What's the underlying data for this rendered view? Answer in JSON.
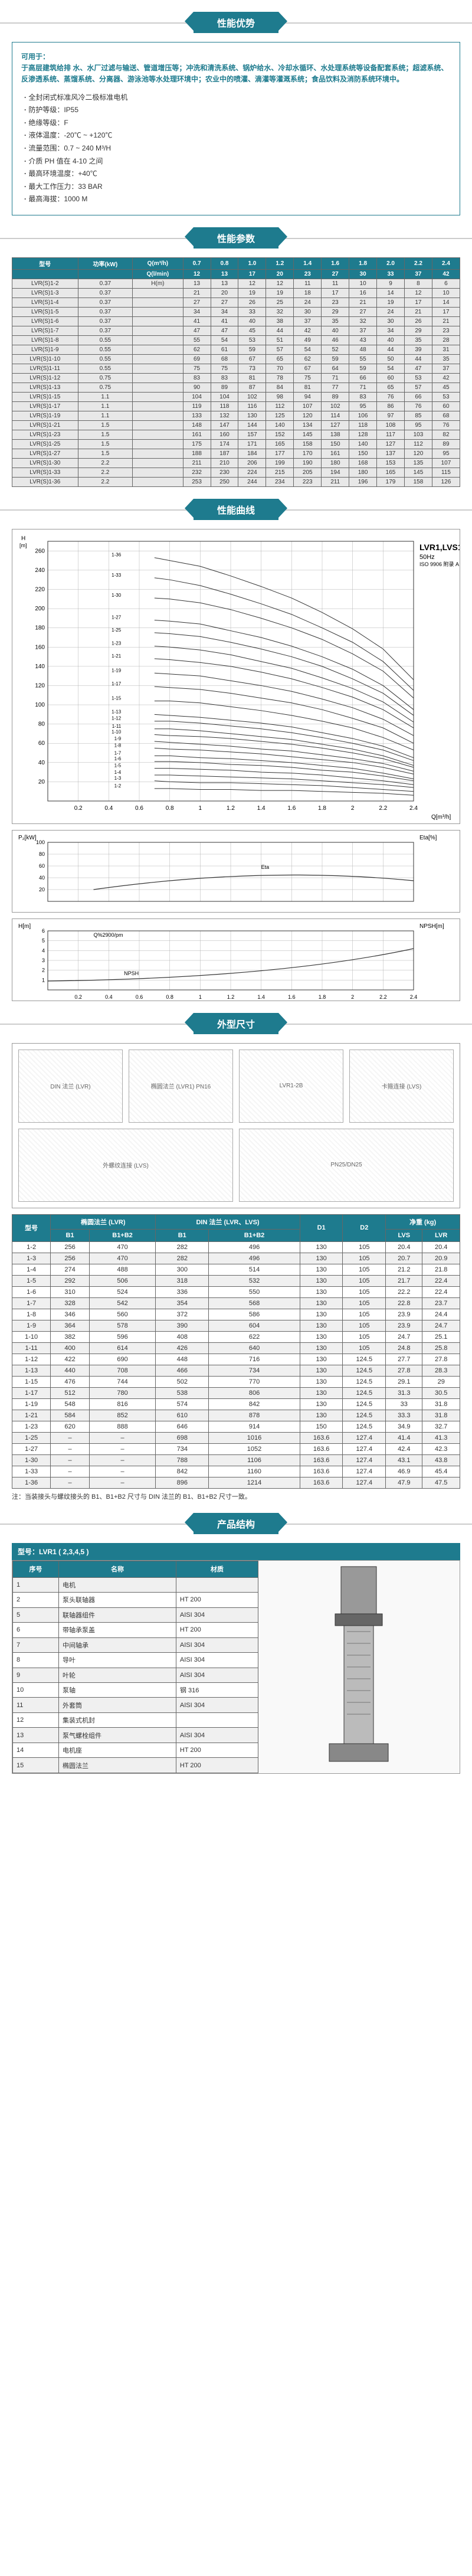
{
  "titles": {
    "adv": "性能优势",
    "param": "性能参数",
    "curve": "性能曲线",
    "dim": "外型尺寸",
    "struct": "产品结构"
  },
  "advantages": {
    "apps_label": "可用于：",
    "apps_text": "于高层建筑给排\n水、水厂过滤与输送、管道增压等；冲洗和清洗系统、锅炉给水、冷却水循环、水处理系统等设备配套系统；超滤系统、反渗透系统、蒸馏系统、分离器、游泳池等水处理环境中；农业中的喷灌、滴灌等灌溉系统；食品饮料及消防系统环境中。",
    "specs": [
      "全封闭式标准风冷二极标准电机",
      "防护等级：IP55",
      "绝缘等级：F",
      "液体温度：-20℃ ~ +120℃",
      "流量范围：0.7 ~ 240 M³/H",
      "介质 PH 值在 4-10 之间",
      "最高环境温度：+40℃",
      "最大工作压力：33 BAR",
      "最高海拔：1000 M"
    ]
  },
  "param_table": {
    "head1": [
      "型号",
      "功率(kW)",
      "Q(m³/h)",
      "0.7",
      "0.8",
      "1.0",
      "1.2",
      "1.4",
      "1.6",
      "1.8",
      "2.0",
      "2.2",
      "2.4"
    ],
    "head2": [
      "",
      "",
      "Q(l/min)",
      "12",
      "13",
      "17",
      "20",
      "23",
      "27",
      "30",
      "33",
      "37",
      "42"
    ],
    "rows": [
      [
        "LVR(S)1-2",
        "0.37",
        "H(m)",
        "13",
        "13",
        "12",
        "12",
        "11",
        "11",
        "10",
        "9",
        "8",
        "6"
      ],
      [
        "LVR(S)1-3",
        "0.37",
        "",
        "21",
        "20",
        "19",
        "19",
        "18",
        "17",
        "16",
        "14",
        "12",
        "10"
      ],
      [
        "LVR(S)1-4",
        "0.37",
        "",
        "27",
        "27",
        "26",
        "25",
        "24",
        "23",
        "21",
        "19",
        "17",
        "14"
      ],
      [
        "LVR(S)1-5",
        "0.37",
        "",
        "34",
        "34",
        "33",
        "32",
        "30",
        "29",
        "27",
        "24",
        "21",
        "17"
      ],
      [
        "LVR(S)1-6",
        "0.37",
        "",
        "41",
        "41",
        "40",
        "38",
        "37",
        "35",
        "32",
        "30",
        "26",
        "21"
      ],
      [
        "LVR(S)1-7",
        "0.37",
        "",
        "47",
        "47",
        "45",
        "44",
        "42",
        "40",
        "37",
        "34",
        "29",
        "23"
      ],
      [
        "LVR(S)1-8",
        "0.55",
        "",
        "55",
        "54",
        "53",
        "51",
        "49",
        "46",
        "43",
        "40",
        "35",
        "28"
      ],
      [
        "LVR(S)1-9",
        "0.55",
        "",
        "62",
        "61",
        "59",
        "57",
        "54",
        "52",
        "48",
        "44",
        "39",
        "31"
      ],
      [
        "LVR(S)1-10",
        "0.55",
        "",
        "69",
        "68",
        "67",
        "65",
        "62",
        "59",
        "55",
        "50",
        "44",
        "35"
      ],
      [
        "LVR(S)1-11",
        "0.55",
        "",
        "75",
        "75",
        "73",
        "70",
        "67",
        "64",
        "59",
        "54",
        "47",
        "37"
      ],
      [
        "LVR(S)1-12",
        "0.75",
        "",
        "83",
        "83",
        "81",
        "78",
        "75",
        "71",
        "66",
        "60",
        "53",
        "42"
      ],
      [
        "LVR(S)1-13",
        "0.75",
        "",
        "90",
        "89",
        "87",
        "84",
        "81",
        "77",
        "71",
        "65",
        "57",
        "45"
      ],
      [
        "LVR(S)1-15",
        "1.1",
        "",
        "104",
        "104",
        "102",
        "98",
        "94",
        "89",
        "83",
        "76",
        "66",
        "53"
      ],
      [
        "LVR(S)1-17",
        "1.1",
        "",
        "119",
        "118",
        "116",
        "112",
        "107",
        "102",
        "95",
        "86",
        "76",
        "60"
      ],
      [
        "LVR(S)1-19",
        "1.1",
        "",
        "133",
        "132",
        "130",
        "125",
        "120",
        "114",
        "106",
        "97",
        "85",
        "68"
      ],
      [
        "LVR(S)1-21",
        "1.5",
        "",
        "148",
        "147",
        "144",
        "140",
        "134",
        "127",
        "118",
        "108",
        "95",
        "76"
      ],
      [
        "LVR(S)1-23",
        "1.5",
        "",
        "161",
        "160",
        "157",
        "152",
        "145",
        "138",
        "128",
        "117",
        "103",
        "82"
      ],
      [
        "LVR(S)1-25",
        "1.5",
        "",
        "175",
        "174",
        "171",
        "165",
        "158",
        "150",
        "140",
        "127",
        "112",
        "89"
      ],
      [
        "LVR(S)1-27",
        "1.5",
        "",
        "188",
        "187",
        "184",
        "177",
        "170",
        "161",
        "150",
        "137",
        "120",
        "95"
      ],
      [
        "LVR(S)1-30",
        "2.2",
        "",
        "211",
        "210",
        "206",
        "199",
        "190",
        "180",
        "168",
        "153",
        "135",
        "107"
      ],
      [
        "LVR(S)1-33",
        "2.2",
        "",
        "232",
        "230",
        "224",
        "215",
        "205",
        "194",
        "180",
        "165",
        "145",
        "115"
      ],
      [
        "LVR(S)1-36",
        "2.2",
        "",
        "253",
        "250",
        "244",
        "234",
        "223",
        "211",
        "196",
        "179",
        "158",
        "126"
      ]
    ]
  },
  "curves": {
    "main": {
      "title": "LVR1,LVS1",
      "subtitle": "50Hz",
      "iso": "ISO 9906 附录 A",
      "x_label": "Q[m³/h]",
      "y_label_l": "H[m]",
      "y_label_r": "P[kPa]",
      "xlim": [
        0,
        2.4
      ],
      "ylim_m": [
        0,
        270
      ],
      "ylim_kpa": [
        0,
        2600
      ],
      "xticks": [
        0,
        0.2,
        0.4,
        0.6,
        0.8,
        1.0,
        1.2,
        1.4,
        1.6,
        1.8,
        2.0,
        2.2,
        2.4
      ],
      "yticks": [
        0,
        20,
        40,
        60,
        80,
        100,
        120,
        140,
        160,
        180,
        200,
        220,
        240,
        260
      ],
      "grid_color": "#b0b0b0",
      "line_color": "#333",
      "bg": "#fff",
      "curve_labels": [
        "1-36",
        "1-33",
        "1-30",
        "1-27",
        "1-25",
        "1-23",
        "1-21",
        "1-19",
        "1-17",
        "1-15",
        "1-13",
        "1-12",
        "1-11",
        "1-10",
        "1-9",
        "1-8",
        "1-7",
        "1-6",
        "1-5",
        "1-4",
        "1-3",
        "1-2"
      ]
    },
    "power": {
      "y_label": "P₂[kW]",
      "y2_label": "Eta[%]",
      "xlim": [
        0,
        2.4
      ],
      "ylim": [
        0,
        100
      ],
      "grid_color": "#b0b0b0"
    },
    "npsh": {
      "y_label": "H[m]",
      "note": "Q%2900/pm",
      "npsh_label": "NPSH",
      "xlim": [
        0,
        2.4
      ],
      "ylim": [
        0,
        6
      ],
      "grid_color": "#b0b0b0"
    }
  },
  "dimensions": {
    "drawings": [
      "DIN 法兰 (LVR)",
      "椭圆法兰 (LVR1) PN16",
      "LVR1-2B",
      "卡箍连接 (LVS)",
      "外螺纹连接 (LVS)",
      "PN25/DN25"
    ],
    "headers": [
      "型号",
      "椭圆法兰 (LVR)",
      "",
      "DIN 法兰\n(LVR、LVS)",
      "",
      "D1",
      "D2",
      "净重 (kg)",
      ""
    ],
    "sub": [
      "",
      "B1",
      "B1+B2",
      "B1",
      "B1+B2",
      "",
      "",
      "LVS",
      "LVR"
    ],
    "rows": [
      [
        "1-2",
        "256",
        "470",
        "282",
        "496",
        "130",
        "105",
        "20.4",
        "20.4"
      ],
      [
        "1-3",
        "256",
        "470",
        "282",
        "496",
        "130",
        "105",
        "20.7",
        "20.9"
      ],
      [
        "1-4",
        "274",
        "488",
        "300",
        "514",
        "130",
        "105",
        "21.2",
        "21.8"
      ],
      [
        "1-5",
        "292",
        "506",
        "318",
        "532",
        "130",
        "105",
        "21.7",
        "22.4"
      ],
      [
        "1-6",
        "310",
        "524",
        "336",
        "550",
        "130",
        "105",
        "22.2",
        "22.4"
      ],
      [
        "1-7",
        "328",
        "542",
        "354",
        "568",
        "130",
        "105",
        "22.8",
        "23.7"
      ],
      [
        "1-8",
        "346",
        "560",
        "372",
        "586",
        "130",
        "105",
        "23.9",
        "24.4"
      ],
      [
        "1-9",
        "364",
        "578",
        "390",
        "604",
        "130",
        "105",
        "23.9",
        "24.7"
      ],
      [
        "1-10",
        "382",
        "596",
        "408",
        "622",
        "130",
        "105",
        "24.7",
        "25.1"
      ],
      [
        "1-11",
        "400",
        "614",
        "426",
        "640",
        "130",
        "105",
        "24.8",
        "25.8"
      ],
      [
        "1-12",
        "422",
        "690",
        "448",
        "716",
        "130",
        "124.5",
        "27.7",
        "27.8"
      ],
      [
        "1-13",
        "440",
        "708",
        "466",
        "734",
        "130",
        "124.5",
        "27.8",
        "28.3"
      ],
      [
        "1-15",
        "476",
        "744",
        "502",
        "770",
        "130",
        "124.5",
        "29.1",
        "29"
      ],
      [
        "1-17",
        "512",
        "780",
        "538",
        "806",
        "130",
        "124.5",
        "31.3",
        "30.5"
      ],
      [
        "1-19",
        "548",
        "816",
        "574",
        "842",
        "130",
        "124.5",
        "33",
        "31.8"
      ],
      [
        "1-21",
        "584",
        "852",
        "610",
        "878",
        "130",
        "124.5",
        "33.3",
        "31.8"
      ],
      [
        "1-23",
        "620",
        "888",
        "646",
        "914",
        "150",
        "124.5",
        "34.9",
        "32.7"
      ],
      [
        "1-25",
        "–",
        "–",
        "698",
        "1016",
        "163.6",
        "127.4",
        "41.4",
        "41.3"
      ],
      [
        "1-27",
        "–",
        "–",
        "734",
        "1052",
        "163.6",
        "127.4",
        "42.4",
        "42.3"
      ],
      [
        "1-30",
        "–",
        "–",
        "788",
        "1106",
        "163.6",
        "127.4",
        "43.1",
        "43.8"
      ],
      [
        "1-33",
        "–",
        "–",
        "842",
        "1160",
        "163.6",
        "127.4",
        "46.9",
        "45.4"
      ],
      [
        "1-36",
        "–",
        "–",
        "896",
        "1214",
        "163.6",
        "127.4",
        "47.9",
        "47.5"
      ]
    ],
    "note": "注：当装接头与螺纹接头的 B1、B1+B2 尺寸与 DIN 法兰的 B1、B1+B2 尺寸一致。"
  },
  "structure": {
    "model": "型号：LVR1 ( 2,3,4,5 )",
    "headers": [
      "序号",
      "名称",
      "材质"
    ],
    "rows": [
      [
        "1",
        "电机",
        "",
        "#fff"
      ],
      [
        "2",
        "泵头联轴器",
        "HT 200",
        "#f0f0f0"
      ],
      [
        "5",
        "联轴器组件",
        "AISI 304",
        "#fff"
      ],
      [
        "6",
        "带轴承泵盖",
        "HT 200",
        "#f0f0f0"
      ],
      [
        "7",
        "中间轴承",
        "AISI 304",
        "#fff"
      ],
      [
        "8",
        "导叶",
        "AISI 304",
        "#f0f0f0"
      ],
      [
        "9",
        "叶轮",
        "AISI 304",
        "#fff"
      ],
      [
        "10",
        "泵轴",
        "钢 316",
        "#f0f0f0"
      ],
      [
        "11",
        "外套筒",
        "AISI 304",
        "#fff"
      ],
      [
        "12",
        "集装式机封",
        "",
        "#f0f0f0"
      ],
      [
        "13",
        "泵气螺栓组件",
        "AISI 304",
        "#fff"
      ],
      [
        "14",
        "电机座",
        "HT 200",
        "#f0f0f0"
      ],
      [
        "15",
        "椭圆法兰",
        "HT 200",
        "#fff"
      ]
    ]
  }
}
